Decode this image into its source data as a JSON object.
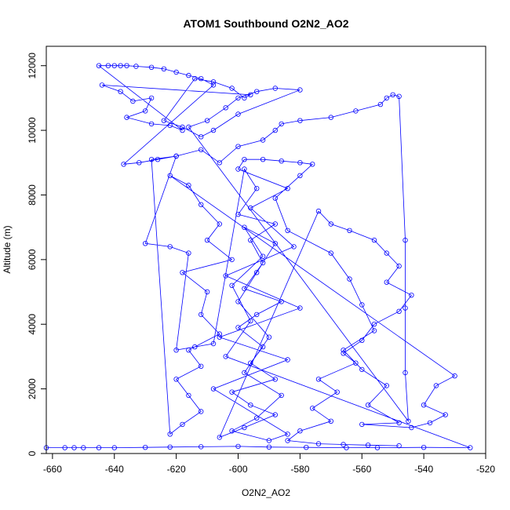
{
  "chart_data": {
    "type": "scatter",
    "title": "ATOM1 Southbound O2N2_AO2",
    "xlabel": "O2N2_AO2",
    "ylabel": "Altitude (m)",
    "xlim": [
      -662,
      -520
    ],
    "ylim": [
      0,
      12600
    ],
    "xticks": [
      -660,
      -640,
      -620,
      -600,
      -580,
      -560,
      -540,
      -520
    ],
    "yticks": [
      0,
      2000,
      4000,
      6000,
      8000,
      10000,
      12000
    ],
    "grid": false,
    "style": "points-and-lines",
    "series": [
      {
        "color": "#0000ff",
        "points": [
          [
            -662,
            180
          ],
          [
            -656,
            180
          ],
          [
            -653,
            180
          ],
          [
            -650,
            180
          ],
          [
            -645,
            180
          ],
          [
            -640,
            180
          ],
          [
            -630,
            190
          ],
          [
            -622,
            200
          ],
          [
            -612,
            210
          ],
          [
            -600,
            220
          ],
          [
            -590,
            200
          ],
          [
            -578,
            190
          ],
          [
            -565,
            180
          ],
          [
            -555,
            180
          ],
          [
            -540,
            190
          ],
          [
            -525,
            180
          ],
          [
            -604,
            3000
          ],
          [
            -596,
            4100
          ],
          [
            -602,
            5200
          ],
          [
            -592,
            6100
          ],
          [
            -598,
            7000
          ],
          [
            -588,
            6500
          ],
          [
            -594,
            5600
          ],
          [
            -600,
            4700
          ],
          [
            -590,
            3600
          ],
          [
            -598,
            2500
          ],
          [
            -586,
            1800
          ],
          [
            -594,
            1100
          ],
          [
            -602,
            700
          ],
          [
            -590,
            400
          ],
          [
            -584,
            600
          ],
          [
            -608,
            2000
          ],
          [
            -584,
            2900
          ],
          [
            -606,
            3600
          ],
          [
            -580,
            4500
          ],
          [
            -604,
            5500
          ],
          [
            -582,
            6400
          ],
          [
            -596,
            7600
          ],
          [
            -584,
            8200
          ],
          [
            -600,
            8800
          ],
          [
            -598,
            9100
          ],
          [
            -592,
            9100
          ],
          [
            -586,
            9050
          ],
          [
            -580,
            9000
          ],
          [
            -576,
            8950
          ],
          [
            -580,
            8600
          ],
          [
            -588,
            7900
          ],
          [
            -584,
            6900
          ],
          [
            -570,
            6200
          ],
          [
            -564,
            5400
          ],
          [
            -560,
            4600
          ],
          [
            -556,
            3800
          ],
          [
            -566,
            3200
          ],
          [
            -560,
            2600
          ],
          [
            -552,
            2100
          ],
          [
            -558,
            1500
          ],
          [
            -548,
            950
          ],
          [
            -560,
            900
          ],
          [
            -544,
            800
          ],
          [
            -538,
            950
          ],
          [
            -533,
            1200
          ],
          [
            -540,
            1500
          ],
          [
            -536,
            2100
          ],
          [
            -530,
            2400
          ],
          [
            -622,
            8600
          ],
          [
            -616,
            8300
          ],
          [
            -612,
            7700
          ],
          [
            -606,
            7100
          ],
          [
            -610,
            6600
          ],
          [
            -602,
            6000
          ],
          [
            -618,
            5600
          ],
          [
            -610,
            5000
          ],
          [
            -612,
            4300
          ],
          [
            -606,
            3700
          ],
          [
            -616,
            3200
          ],
          [
            -612,
            2700
          ],
          [
            -620,
            2300
          ],
          [
            -616,
            1800
          ],
          [
            -612,
            1300
          ],
          [
            -618,
            900
          ],
          [
            -622,
            600
          ],
          [
            -628,
            9100
          ],
          [
            -620,
            9200
          ],
          [
            -612,
            9400
          ],
          [
            -606,
            9000
          ],
          [
            -600,
            9500
          ],
          [
            -592,
            9700
          ],
          [
            -588,
            10000
          ],
          [
            -586,
            10200
          ],
          [
            -580,
            10300
          ],
          [
            -570,
            10400
          ],
          [
            -562,
            10600
          ],
          [
            -554,
            10800
          ],
          [
            -552,
            11000
          ],
          [
            -550,
            11100
          ],
          [
            -548,
            11050
          ],
          [
            -546,
            6600
          ],
          [
            -546,
            4500
          ],
          [
            -546,
            2500
          ],
          [
            -545,
            1000
          ],
          [
            -616,
            10100
          ],
          [
            -610,
            10300
          ],
          [
            -604,
            10700
          ],
          [
            -600,
            11000
          ],
          [
            -594,
            11200
          ],
          [
            -588,
            11300
          ],
          [
            -580,
            11250
          ],
          [
            -600,
            10500
          ],
          [
            -608,
            10000
          ],
          [
            -612,
            9800
          ],
          [
            -618,
            10100
          ],
          [
            -624,
            10300
          ],
          [
            -614,
            11600
          ],
          [
            -608,
            11500
          ],
          [
            -602,
            11300
          ],
          [
            -598,
            11000
          ],
          [
            -596,
            11100
          ],
          [
            -644,
            11400
          ],
          [
            -638,
            11200
          ],
          [
            -634,
            10900
          ],
          [
            -628,
            11000
          ],
          [
            -630,
            10600
          ],
          [
            -636,
            10400
          ],
          [
            -628,
            10200
          ],
          [
            -622,
            10150
          ],
          [
            -618,
            10000
          ],
          [
            -645,
            12000
          ],
          [
            -642,
            12000
          ],
          [
            -640,
            12000
          ],
          [
            -638,
            12000
          ],
          [
            -636,
            12000
          ],
          [
            -633,
            11980
          ],
          [
            -628,
            11950
          ],
          [
            -624,
            11900
          ],
          [
            -620,
            11800
          ],
          [
            -616,
            11700
          ],
          [
            -612,
            11600
          ],
          [
            -608,
            11400
          ],
          [
            -637,
            8950
          ],
          [
            -632,
            9000
          ],
          [
            -626,
            9100
          ],
          [
            -620,
            9200
          ],
          [
            -630,
            6500
          ],
          [
            -622,
            6400
          ],
          [
            -616,
            6200
          ],
          [
            -620,
            3200
          ],
          [
            -614,
            3300
          ],
          [
            -608,
            3400
          ],
          [
            -598,
            8800
          ],
          [
            -594,
            8200
          ],
          [
            -600,
            7400
          ],
          [
            -588,
            7100
          ],
          [
            -596,
            6600
          ],
          [
            -592,
            5900
          ],
          [
            -598,
            5100
          ],
          [
            -586,
            4700
          ],
          [
            -594,
            4300
          ],
          [
            -600,
            3900
          ],
          [
            -592,
            3300
          ],
          [
            -596,
            2800
          ],
          [
            -588,
            2300
          ],
          [
            -602,
            1900
          ],
          [
            -596,
            1500
          ],
          [
            -588,
            1200
          ],
          [
            -598,
            800
          ],
          [
            -606,
            500
          ],
          [
            -574,
            7500
          ],
          [
            -570,
            7100
          ],
          [
            -564,
            6900
          ],
          [
            -556,
            6600
          ],
          [
            -552,
            6200
          ],
          [
            -548,
            5800
          ],
          [
            -552,
            5300
          ],
          [
            -544,
            4900
          ],
          [
            -548,
            4400
          ],
          [
            -556,
            4000
          ],
          [
            -560,
            3500
          ],
          [
            -566,
            3100
          ],
          [
            -562,
            2800
          ],
          [
            -574,
            2300
          ],
          [
            -568,
            1900
          ],
          [
            -576,
            1400
          ],
          [
            -570,
            1000
          ],
          [
            -580,
            700
          ],
          [
            -584,
            400
          ],
          [
            -574,
            300
          ],
          [
            -566,
            280
          ],
          [
            -558,
            260
          ],
          [
            -548,
            240
          ]
        ]
      }
    ]
  }
}
